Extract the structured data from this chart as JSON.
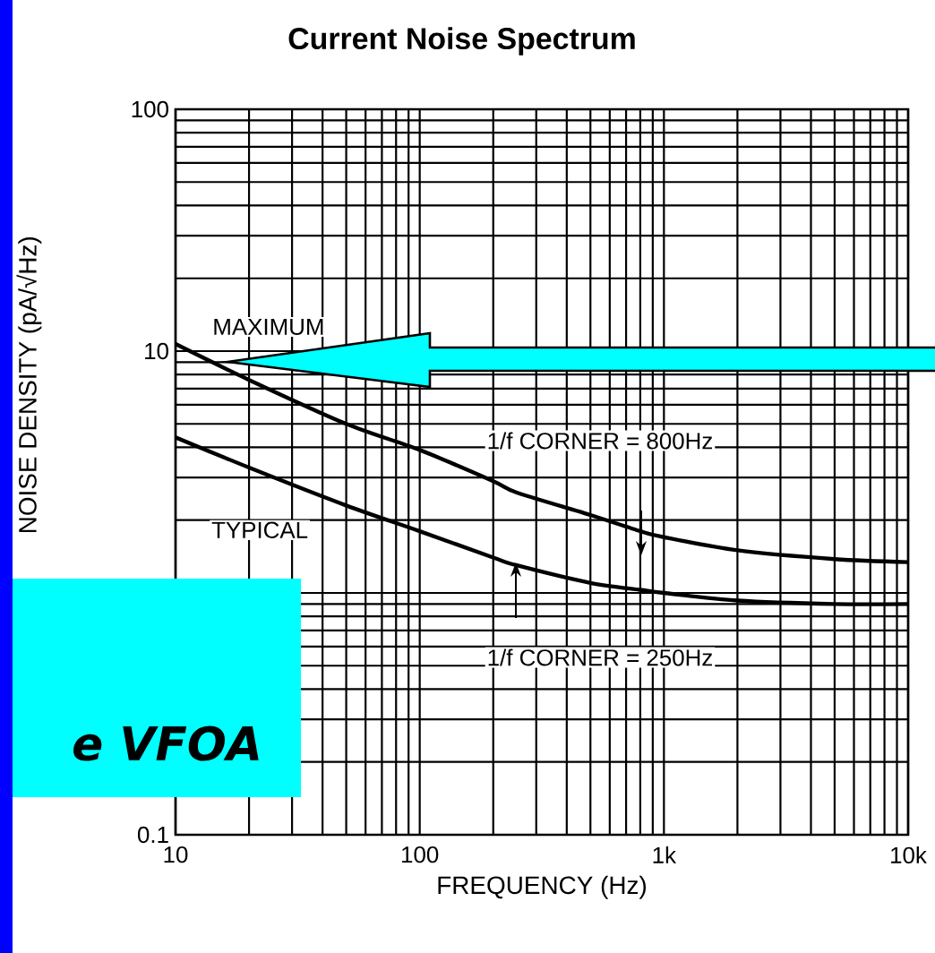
{
  "chart_data": {
    "type": "line",
    "title": "Current Noise Spectrum",
    "xlabel": "FREQUENCY (Hz)",
    "ylabel": "NOISE DENSITY (pA/√Hz)",
    "log": "xy",
    "grid": true,
    "legend": false,
    "marker": "none",
    "line_style": "solid",
    "xlim": [
      10,
      10000
    ],
    "ylim": [
      0.1,
      100
    ],
    "xticks": [
      10,
      100,
      {
        "value": 1000,
        "label": "1k"
      },
      {
        "value": 10000,
        "label": "10k"
      }
    ],
    "yticks": [
      0.1,
      {
        "value": 1,
        "label": null
      },
      10,
      100
    ],
    "x": [
      10,
      20,
      50,
      100,
      200,
      250,
      500,
      800,
      1000,
      2000,
      5000,
      10000
    ],
    "series": [
      {
        "name": "MAXIMUM",
        "color": "#000000",
        "values": [
          10.7,
          7.6,
          5.0,
          3.9,
          2.9,
          2.6,
          2.1,
          1.8,
          1.7,
          1.5,
          1.38,
          1.34
        ]
      },
      {
        "name": "TYPICAL",
        "color": "#000000",
        "values": [
          4.4,
          3.3,
          2.3,
          1.8,
          1.4,
          1.3,
          1.1,
          1.03,
          1.0,
          0.93,
          0.9,
          0.9
        ]
      }
    ],
    "annotations": [
      "1/f CORNER = 800Hz",
      "1/f CORNER = 250Hz",
      "e VFOA"
    ]
  }
}
